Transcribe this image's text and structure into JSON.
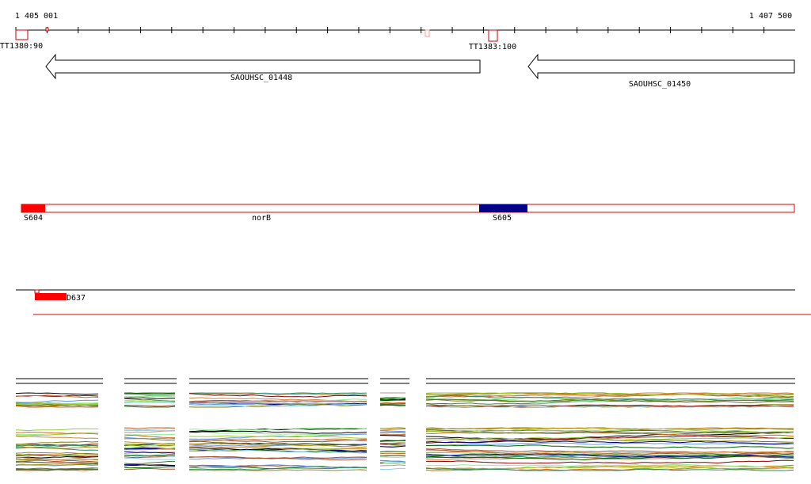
{
  "ruler": {
    "start": "1 405 001",
    "end": "1 407 500"
  },
  "terminators": [
    "TT1380:90",
    "TT1383:100"
  ],
  "genes": [
    "SAOUHSC_01448",
    "SAOUHSC_01450"
  ],
  "segments": {
    "left": "S604",
    "middle": "norB",
    "right": "S605"
  },
  "feature": "D637"
}
